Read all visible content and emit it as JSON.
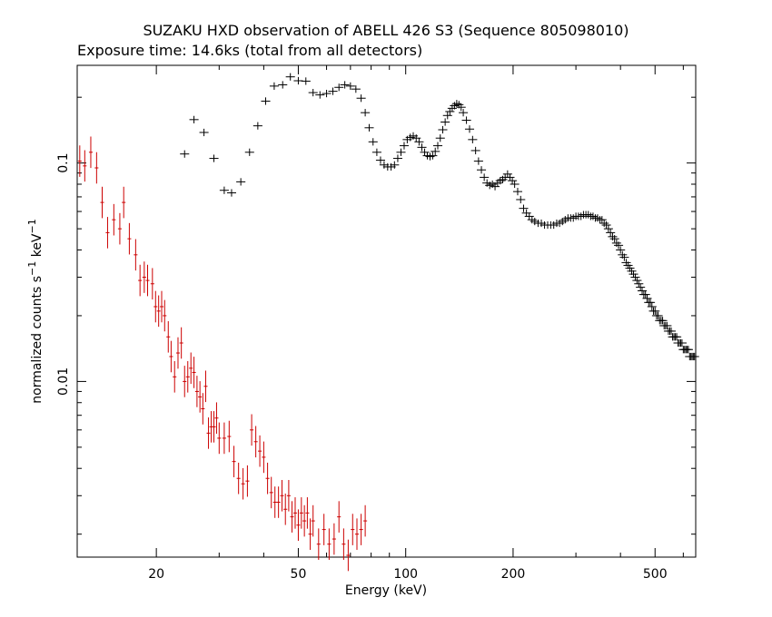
{
  "chart_data": {
    "type": "scatter",
    "title": "SUZAKU HXD observation of ABELL 426 S3 (Sequence 805098010)",
    "subtitle": "Exposure time: 14.6ks (total from all detectors)",
    "xlabel": "Energy (keV)",
    "ylabel_main": "normalized counts s",
    "ylabel_sup1": "−1",
    "ylabel_mid": " keV",
    "ylabel_sup2": "−1",
    "x_scale": "log",
    "y_scale": "log",
    "xlim": [
      12,
      650
    ],
    "ylim": [
      0.00157,
      0.28
    ],
    "x_tick_labels": [
      "20",
      "50",
      "100",
      "200",
      "500"
    ],
    "y_tick_labels": [
      "0.1",
      "0.01"
    ],
    "grid": false,
    "colors": {
      "black_series": "#000000",
      "red_series": "#cc0000"
    },
    "series": [
      {
        "points": [
          [
            24.0,
            0.11
          ],
          [
            25.5,
            0.158
          ],
          [
            27.2,
            0.138
          ],
          [
            29.0,
            0.105
          ],
          [
            31.0,
            0.075
          ],
          [
            32.5,
            0.073
          ],
          [
            34.5,
            0.082
          ],
          [
            36.5,
            0.112
          ],
          [
            38.5,
            0.148
          ],
          [
            40.5,
            0.192
          ],
          [
            42.8,
            0.225
          ],
          [
            45.2,
            0.228
          ],
          [
            47.5,
            0.248
          ],
          [
            50.0,
            0.238
          ],
          [
            52.5,
            0.237
          ],
          [
            55.0,
            0.21
          ],
          [
            57.5,
            0.205
          ],
          [
            60.0,
            0.208
          ],
          [
            62.5,
            0.213
          ],
          [
            65.0,
            0.222
          ],
          [
            67.5,
            0.228
          ],
          [
            70.0,
            0.225
          ],
          [
            72.5,
            0.218
          ],
          [
            75.0,
            0.198
          ],
          [
            77.0,
            0.17
          ],
          [
            79.0,
            0.145
          ],
          [
            81.0,
            0.125
          ],
          [
            83.0,
            0.112
          ],
          [
            85.0,
            0.103
          ],
          [
            87.0,
            0.098
          ],
          [
            89.0,
            0.096
          ],
          [
            91.0,
            0.096
          ],
          [
            93.0,
            0.098
          ],
          [
            95.0,
            0.105
          ],
          [
            97.0,
            0.112
          ],
          [
            99.0,
            0.12
          ],
          [
            101.0,
            0.128
          ],
          [
            103.0,
            0.131
          ],
          [
            105.0,
            0.133
          ],
          [
            107.0,
            0.13
          ],
          [
            109.0,
            0.125
          ],
          [
            111.0,
            0.118
          ],
          [
            113.0,
            0.112
          ],
          [
            115.0,
            0.108
          ],
          [
            117.0,
            0.107
          ],
          [
            119.0,
            0.108
          ],
          [
            121.0,
            0.113
          ],
          [
            123.0,
            0.12
          ],
          [
            125.0,
            0.13
          ],
          [
            127.0,
            0.142
          ],
          [
            129.0,
            0.154
          ],
          [
            131.0,
            0.165
          ],
          [
            133.0,
            0.172
          ],
          [
            135.0,
            0.178
          ],
          [
            137.0,
            0.183
          ],
          [
            139.0,
            0.187
          ],
          [
            141.0,
            0.185
          ],
          [
            143.0,
            0.18
          ],
          [
            145.0,
            0.17
          ],
          [
            148.0,
            0.157
          ],
          [
            151.0,
            0.143
          ],
          [
            154.0,
            0.128
          ],
          [
            157.0,
            0.114
          ],
          [
            160.0,
            0.102
          ],
          [
            163.0,
            0.093
          ],
          [
            166.0,
            0.086
          ],
          [
            169.0,
            0.081
          ],
          [
            172.0,
            0.079
          ],
          [
            175.0,
            0.08
          ],
          [
            178.0,
            0.078
          ],
          [
            181.0,
            0.081
          ],
          [
            184.0,
            0.083
          ],
          [
            187.0,
            0.084
          ],
          [
            190.0,
            0.086
          ],
          [
            193.0,
            0.089
          ],
          [
            196.0,
            0.086
          ],
          [
            199.0,
            0.083
          ],
          [
            202.0,
            0.08
          ],
          [
            206.0,
            0.074
          ],
          [
            210.0,
            0.068
          ],
          [
            214.0,
            0.062
          ],
          [
            218.0,
            0.059
          ],
          [
            222.0,
            0.057
          ],
          [
            226.0,
            0.055
          ],
          [
            230.0,
            0.054
          ],
          [
            235.0,
            0.053
          ],
          [
            240.0,
            0.053
          ],
          [
            245.0,
            0.052
          ],
          [
            250.0,
            0.052
          ],
          [
            255.0,
            0.052
          ],
          [
            260.0,
            0.052
          ],
          [
            265.0,
            0.053
          ],
          [
            270.0,
            0.053
          ],
          [
            275.0,
            0.054
          ],
          [
            280.0,
            0.055
          ],
          [
            285.0,
            0.056
          ],
          [
            290.0,
            0.056
          ],
          [
            295.0,
            0.056
          ],
          [
            300.0,
            0.057
          ],
          [
            305.0,
            0.057
          ],
          [
            310.0,
            0.057
          ],
          [
            315.0,
            0.058
          ],
          [
            320.0,
            0.058
          ],
          [
            325.0,
            0.058
          ],
          [
            330.0,
            0.057
          ],
          [
            335.0,
            0.057
          ],
          [
            340.0,
            0.056
          ],
          [
            345.0,
            0.056
          ],
          [
            350.0,
            0.055
          ],
          [
            355.0,
            0.055
          ],
          [
            360.0,
            0.053
          ],
          [
            365.0,
            0.052
          ],
          [
            370.0,
            0.05
          ],
          [
            375.0,
            0.048
          ],
          [
            380.0,
            0.046
          ],
          [
            385.0,
            0.045
          ],
          [
            390.0,
            0.043
          ],
          [
            395.0,
            0.042
          ],
          [
            400.0,
            0.04
          ],
          [
            405.0,
            0.038
          ],
          [
            410.0,
            0.037
          ],
          [
            415.0,
            0.035
          ],
          [
            420.0,
            0.034
          ],
          [
            425.0,
            0.033
          ],
          [
            430.0,
            0.032
          ],
          [
            435.0,
            0.031
          ],
          [
            440.0,
            0.03
          ],
          [
            445.0,
            0.029
          ],
          [
            450.0,
            0.028
          ],
          [
            455.0,
            0.027
          ],
          [
            460.0,
            0.026
          ],
          [
            465.0,
            0.025
          ],
          [
            470.0,
            0.025
          ],
          [
            475.0,
            0.024
          ],
          [
            480.0,
            0.023
          ],
          [
            485.0,
            0.023
          ],
          [
            490.0,
            0.022
          ],
          [
            495.0,
            0.021
          ],
          [
            500.0,
            0.021
          ],
          [
            505.0,
            0.02
          ],
          [
            510.0,
            0.02
          ],
          [
            515.0,
            0.019
          ],
          [
            520.0,
            0.019
          ],
          [
            525.0,
            0.019
          ],
          [
            530.0,
            0.018
          ],
          [
            535.0,
            0.018
          ],
          [
            540.0,
            0.018
          ],
          [
            545.0,
            0.017
          ],
          [
            550.0,
            0.017
          ],
          [
            555.0,
            0.017
          ],
          [
            560.0,
            0.016
          ],
          [
            565.0,
            0.016
          ],
          [
            570.0,
            0.016
          ],
          [
            575.0,
            0.016
          ],
          [
            580.0,
            0.015
          ],
          [
            585.0,
            0.015
          ],
          [
            590.0,
            0.015
          ],
          [
            595.0,
            0.015
          ],
          [
            600.0,
            0.014
          ],
          [
            605.0,
            0.014
          ],
          [
            610.0,
            0.014
          ],
          [
            615.0,
            0.014
          ],
          [
            620.0,
            0.014
          ],
          [
            625.0,
            0.013
          ],
          [
            630.0,
            0.013
          ],
          [
            635.0,
            0.013
          ],
          [
            640.0,
            0.013
          ],
          [
            645.0,
            0.013
          ]
        ]
      },
      {
        "points": [
          [
            12.2,
            0.102
          ],
          [
            12.6,
            0.097
          ],
          [
            13.1,
            0.112
          ],
          [
            13.6,
            0.095
          ],
          [
            14.1,
            0.066
          ],
          [
            14.6,
            0.048
          ],
          [
            15.2,
            0.055
          ],
          [
            15.8,
            0.05
          ],
          [
            16.2,
            0.066
          ],
          [
            16.8,
            0.045
          ],
          [
            17.5,
            0.038
          ],
          [
            18.0,
            0.029
          ],
          [
            18.5,
            0.03
          ],
          [
            18.9,
            0.029
          ],
          [
            19.5,
            0.028
          ],
          [
            19.9,
            0.022
          ],
          [
            20.3,
            0.021
          ],
          [
            20.7,
            0.022
          ],
          [
            21.1,
            0.02
          ],
          [
            21.6,
            0.016
          ],
          [
            22.0,
            0.013
          ],
          [
            22.5,
            0.0105
          ],
          [
            23.0,
            0.0135
          ],
          [
            23.5,
            0.015
          ],
          [
            24.0,
            0.01
          ],
          [
            24.5,
            0.0105
          ],
          [
            25.0,
            0.0115
          ],
          [
            25.5,
            0.011
          ],
          [
            26.0,
            0.009
          ],
          [
            26.5,
            0.0085
          ],
          [
            27.0,
            0.0075
          ],
          [
            27.5,
            0.0095
          ],
          [
            28.0,
            0.0058
          ],
          [
            28.5,
            0.0062
          ],
          [
            29.0,
            0.0062
          ],
          [
            29.5,
            0.0068
          ],
          [
            30.0,
            0.0055
          ],
          [
            31.0,
            0.0055
          ],
          [
            32.0,
            0.0056
          ],
          [
            33.0,
            0.0043
          ],
          [
            34.0,
            0.0036
          ],
          [
            35.0,
            0.0034
          ],
          [
            36.0,
            0.0035
          ],
          [
            37.0,
            0.006
          ],
          [
            38.0,
            0.0053
          ],
          [
            39.0,
            0.0048
          ],
          [
            40.0,
            0.0045
          ],
          [
            41.0,
            0.0036
          ],
          [
            42.0,
            0.0031
          ],
          [
            43.0,
            0.0028
          ],
          [
            44.0,
            0.0028
          ],
          [
            45.0,
            0.003
          ],
          [
            46.0,
            0.0026
          ],
          [
            47.0,
            0.003
          ],
          [
            48.0,
            0.0024
          ],
          [
            49.0,
            0.0025
          ],
          [
            50.0,
            0.0022
          ],
          [
            51.0,
            0.0025
          ],
          [
            52.0,
            0.0023
          ],
          [
            53.0,
            0.0025
          ],
          [
            54.0,
            0.002
          ],
          [
            55.0,
            0.0023
          ],
          [
            57.0,
            0.0018
          ],
          [
            59.0,
            0.0021
          ],
          [
            61.0,
            0.0018
          ],
          [
            63.0,
            0.0019
          ],
          [
            65.0,
            0.0024
          ],
          [
            67.0,
            0.0018
          ],
          [
            69.0,
            0.0016
          ],
          [
            71.0,
            0.0021
          ],
          [
            73.0,
            0.002
          ],
          [
            75.0,
            0.0021
          ],
          [
            77.0,
            0.0023
          ]
        ]
      }
    ]
  }
}
